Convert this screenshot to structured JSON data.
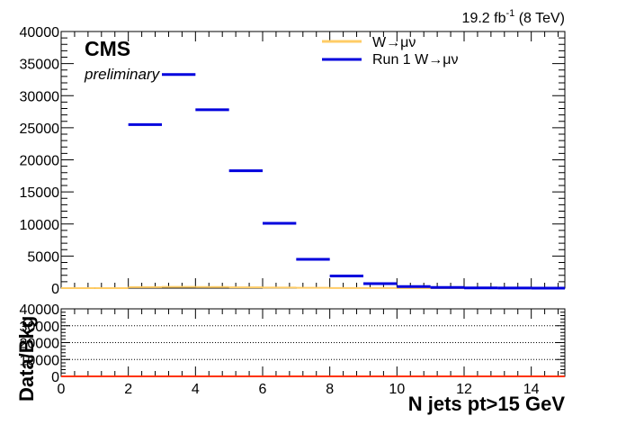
{
  "header": {
    "lumi_main": "19.2 fb",
    "lumi_sup": "-1",
    "lumi_energy": " (8 TeV)",
    "experiment": "CMS",
    "status": "preliminary"
  },
  "colors": {
    "mc": "#ffcc66",
    "run1": "#0000dd",
    "ratio_line": "#ff3300",
    "axis": "#000000"
  },
  "chart_data": [
    {
      "type": "line",
      "xlabel": "N jets pt>15 GeV",
      "ylabel": "",
      "xlim": [
        0,
        15
      ],
      "ylim": [
        0,
        40000
      ],
      "x_ticks": [
        "0",
        "2",
        "4",
        "6",
        "8",
        "10",
        "12",
        "14"
      ],
      "y_ticks": [
        "0",
        "5000",
        "10000",
        "15000",
        "20000",
        "25000",
        "30000",
        "35000",
        "40000"
      ],
      "legend_position": "top-right",
      "series": [
        {
          "name": "W→μν",
          "style": "histogram",
          "bins": [
            [
              0,
              1
            ],
            [
              1,
              2
            ],
            [
              2,
              3
            ],
            [
              3,
              4
            ],
            [
              4,
              5
            ],
            [
              5,
              6
            ],
            [
              6,
              7
            ],
            [
              7,
              8
            ],
            [
              8,
              9
            ],
            [
              9,
              10
            ],
            [
              10,
              11
            ],
            [
              11,
              12
            ],
            [
              12,
              13
            ],
            [
              13,
              14
            ],
            [
              14,
              15
            ]
          ],
          "values": [
            0,
            0,
            150,
            200,
            180,
            130,
            90,
            50,
            25,
            12,
            6,
            3,
            1,
            0,
            0
          ]
        },
        {
          "name": "Run 1 W→μν",
          "style": "points",
          "bins": [
            [
              2,
              3
            ],
            [
              3,
              4
            ],
            [
              4,
              5
            ],
            [
              5,
              6
            ],
            [
              6,
              7
            ],
            [
              7,
              8
            ],
            [
              8,
              9
            ],
            [
              9,
              10
            ],
            [
              10,
              11
            ],
            [
              11,
              12
            ],
            [
              12,
              13
            ],
            [
              13,
              14
            ],
            [
              14,
              15
            ]
          ],
          "values": [
            25500,
            33300,
            27800,
            18300,
            10100,
            4500,
            1900,
            700,
            250,
            100,
            40,
            15,
            5
          ]
        }
      ]
    },
    {
      "type": "line",
      "xlabel": "N jets pt>15 GeV",
      "ylabel": "Data/Bkg",
      "xlim": [
        0,
        15
      ],
      "ylim": [
        0,
        40000
      ],
      "x_ticks": [
        "0",
        "2",
        "4",
        "6",
        "8",
        "10",
        "12",
        "14"
      ],
      "y_ticks": [
        "0",
        "10000",
        "20000",
        "30000",
        "40000"
      ],
      "grid": true,
      "series": [
        {
          "name": "",
          "style": "line",
          "x": [
            0,
            15
          ],
          "values": [
            0,
            0
          ]
        }
      ]
    }
  ]
}
